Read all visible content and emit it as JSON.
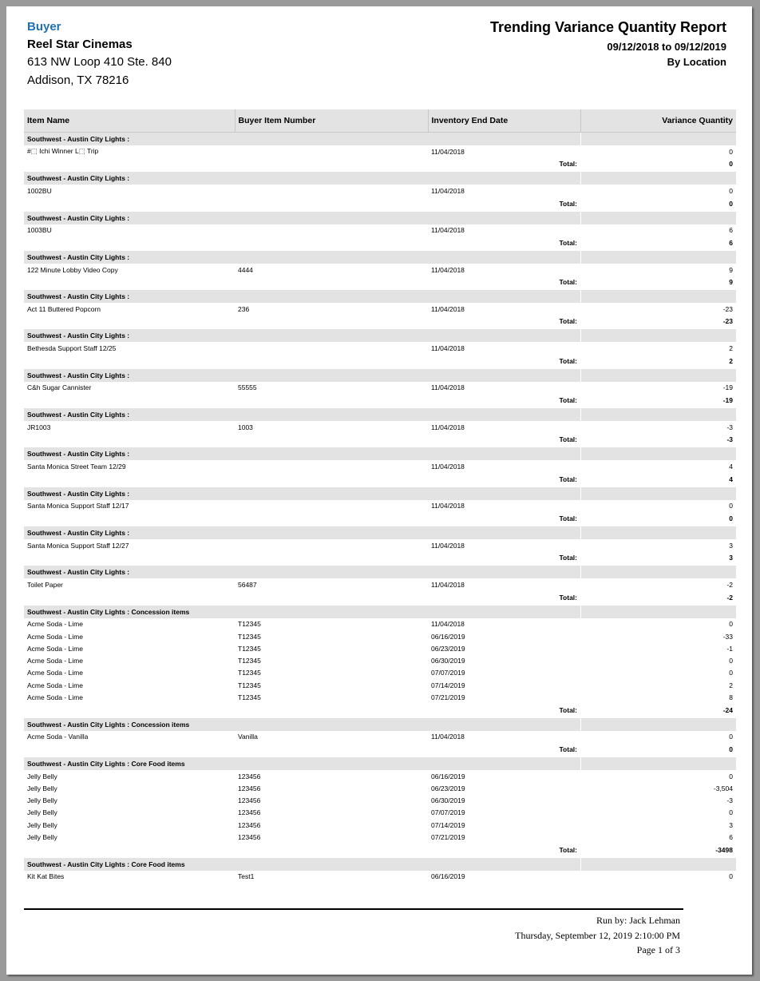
{
  "header": {
    "buyer_label": "Buyer",
    "buyer_name": "Reel Star Cinemas",
    "address_line1": "613 NW Loop 410 Ste. 840",
    "address_line2": "Addison, TX 78216",
    "title": "Trending Variance Quantity Report",
    "date_range": "09/12/2018 to 09/12/2019",
    "grouping": "By Location"
  },
  "columns": [
    "Item Name",
    "Buyer Item Number",
    "Inventory End Date",
    "Variance Quantity"
  ],
  "total_label": "Total:",
  "groups": [
    {
      "header": "Southwest  -  Austin City Lights  :",
      "items": [
        {
          "name": "#⬚ Ichi Winner L⬚ Trip",
          "number": "",
          "date": "11/04/2018",
          "qty": "0"
        }
      ],
      "total": "0"
    },
    {
      "header": "Southwest  -  Austin City Lights  :",
      "items": [
        {
          "name": "1002BU",
          "number": "",
          "date": "11/04/2018",
          "qty": "0"
        }
      ],
      "total": "0"
    },
    {
      "header": "Southwest  -  Austin City Lights  :",
      "items": [
        {
          "name": "1003BU",
          "number": "",
          "date": "11/04/2018",
          "qty": "6"
        }
      ],
      "total": "6"
    },
    {
      "header": "Southwest  -  Austin City Lights  :",
      "items": [
        {
          "name": "122 Minute Lobby Video Copy",
          "number": "4444",
          "date": "11/04/2018",
          "qty": "9"
        }
      ],
      "total": "9"
    },
    {
      "header": "Southwest  -  Austin City Lights  :",
      "items": [
        {
          "name": "Act 11 Buttered Popcorn",
          "number": "236",
          "date": "11/04/2018",
          "qty": "-23"
        }
      ],
      "total": "-23"
    },
    {
      "header": "Southwest  -  Austin City Lights  :",
      "items": [
        {
          "name": "Bethesda Support Staff 12/25",
          "number": "",
          "date": "11/04/2018",
          "qty": "2"
        }
      ],
      "total": "2"
    },
    {
      "header": "Southwest  -  Austin City Lights  :",
      "items": [
        {
          "name": "C&h Sugar Cannister",
          "number": "55555",
          "date": "11/04/2018",
          "qty": "-19"
        }
      ],
      "total": "-19"
    },
    {
      "header": "Southwest  -  Austin City Lights  :",
      "items": [
        {
          "name": "JR1003",
          "number": "1003",
          "date": "11/04/2018",
          "qty": "-3"
        }
      ],
      "total": "-3"
    },
    {
      "header": "Southwest  -  Austin City Lights  :",
      "items": [
        {
          "name": "Santa Monica Street Team 12/29",
          "number": "",
          "date": "11/04/2018",
          "qty": "4"
        }
      ],
      "total": "4"
    },
    {
      "header": "Southwest  -  Austin City Lights  :",
      "items": [
        {
          "name": "Santa Monica Support Staff 12/17",
          "number": "",
          "date": "11/04/2018",
          "qty": "0"
        }
      ],
      "total": "0"
    },
    {
      "header": "Southwest  -  Austin City Lights  :",
      "items": [
        {
          "name": "Santa Monica Support Staff 12/27",
          "number": "",
          "date": "11/04/2018",
          "qty": "3"
        }
      ],
      "total": "3"
    },
    {
      "header": "Southwest  -  Austin City Lights  :",
      "items": [
        {
          "name": "Toilet Paper",
          "number": "56487",
          "date": "11/04/2018",
          "qty": "-2"
        }
      ],
      "total": "-2"
    },
    {
      "header": "Southwest  -  Austin City Lights  :  Concession items",
      "items": [
        {
          "name": "Acme Soda - Lime",
          "number": "T12345",
          "date": "11/04/2018",
          "qty": "0"
        },
        {
          "name": "Acme Soda - Lime",
          "number": "T12345",
          "date": "06/16/2019",
          "qty": "-33"
        },
        {
          "name": "Acme Soda - Lime",
          "number": "T12345",
          "date": "06/23/2019",
          "qty": "-1"
        },
        {
          "name": "Acme Soda - Lime",
          "number": "T12345",
          "date": "06/30/2019",
          "qty": "0"
        },
        {
          "name": "Acme Soda - Lime",
          "number": "T12345",
          "date": "07/07/2019",
          "qty": "0"
        },
        {
          "name": "Acme Soda - Lime",
          "number": "T12345",
          "date": "07/14/2019",
          "qty": "2"
        },
        {
          "name": "Acme Soda - Lime",
          "number": "T12345",
          "date": "07/21/2019",
          "qty": "8"
        }
      ],
      "total": "-24"
    },
    {
      "header": "Southwest  -  Austin City Lights  :  Concession items",
      "items": [
        {
          "name": "Acme Soda - Vanilla",
          "number": "Vanilla",
          "date": "11/04/2018",
          "qty": "0"
        }
      ],
      "total": "0"
    },
    {
      "header": "Southwest  -  Austin City Lights  :  Core Food items",
      "items": [
        {
          "name": "Jelly Belly",
          "number": "123456",
          "date": "06/16/2019",
          "qty": "0"
        },
        {
          "name": "Jelly Belly",
          "number": "123456",
          "date": "06/23/2019",
          "qty": "-3,504"
        },
        {
          "name": "Jelly Belly",
          "number": "123456",
          "date": "06/30/2019",
          "qty": "-3"
        },
        {
          "name": "Jelly Belly",
          "number": "123456",
          "date": "07/07/2019",
          "qty": "0"
        },
        {
          "name": "Jelly Belly",
          "number": "123456",
          "date": "07/14/2019",
          "qty": "3"
        },
        {
          "name": "Jelly Belly",
          "number": "123456",
          "date": "07/21/2019",
          "qty": "6"
        }
      ],
      "total": "-3498"
    },
    {
      "header": "Southwest  -  Austin City Lights  :  Core Food items",
      "items": [
        {
          "name": "Kit Kat Bites",
          "number": "Test1",
          "date": "06/16/2019",
          "qty": "0"
        }
      ]
    }
  ],
  "footer": {
    "run_by": "Run by: Jack Lehman",
    "timestamp": "Thursday, September 12,  2019   2:10:00 PM",
    "page": "Page 1 of 3"
  }
}
